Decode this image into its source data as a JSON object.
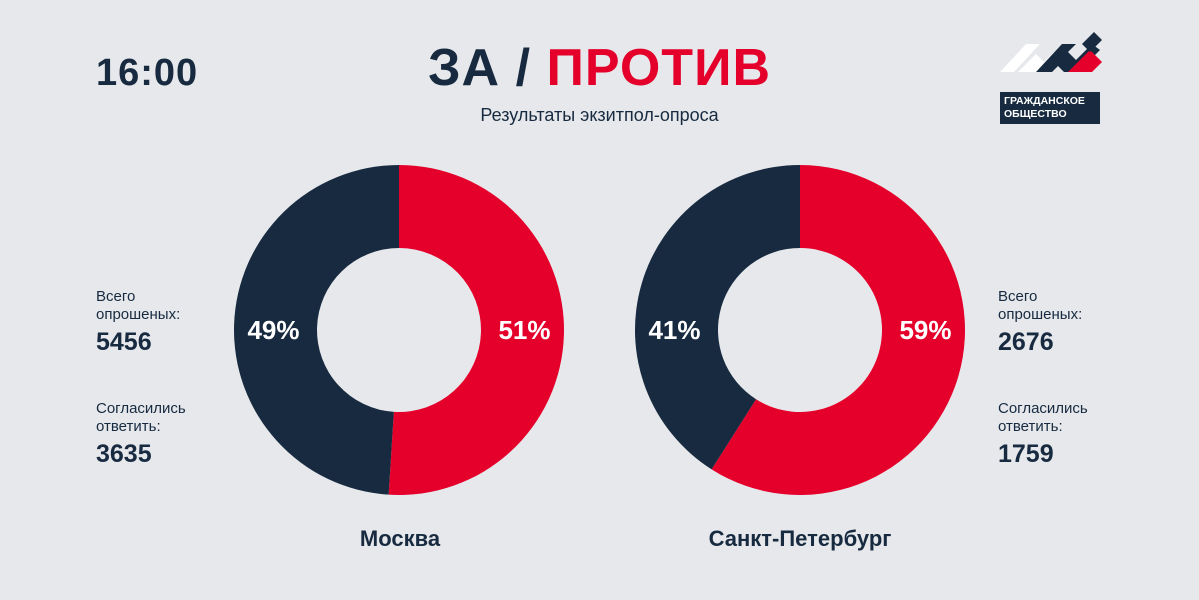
{
  "header": {
    "time": "16:00",
    "title_left": "ЗА",
    "title_sep": "/",
    "title_right": "ПРОТИВ",
    "subtitle": "Результаты экзитпол-опроса"
  },
  "logo": {
    "line1": "ГРАЖДАНСКОЕ",
    "line2": "ОБЩЕСТВО"
  },
  "colors": {
    "background": "#e6e8eb",
    "za": "#172a40",
    "protiv": "#e4002b"
  },
  "chart_data": [
    {
      "type": "pie",
      "title": "Москва",
      "slices": [
        {
          "label": "51%",
          "value": 51,
          "color": "#e4002b"
        },
        {
          "label": "49%",
          "value": 49,
          "color": "#172a40"
        }
      ],
      "stats": {
        "total_label": "Всего опрошеных:",
        "total_value": "5456",
        "agreed_label": "Согласились ответить:",
        "agreed_value": "3635"
      }
    },
    {
      "type": "pie",
      "title": "Санкт-Петербург",
      "slices": [
        {
          "label": "59%",
          "value": 59,
          "color": "#e4002b"
        },
        {
          "label": "41%",
          "value": 41,
          "color": "#172a40"
        }
      ],
      "stats": {
        "total_label": "Всего опрошеных:",
        "total_value": "2676",
        "agreed_label": "Согласились ответить:",
        "agreed_value": "1759"
      }
    }
  ]
}
